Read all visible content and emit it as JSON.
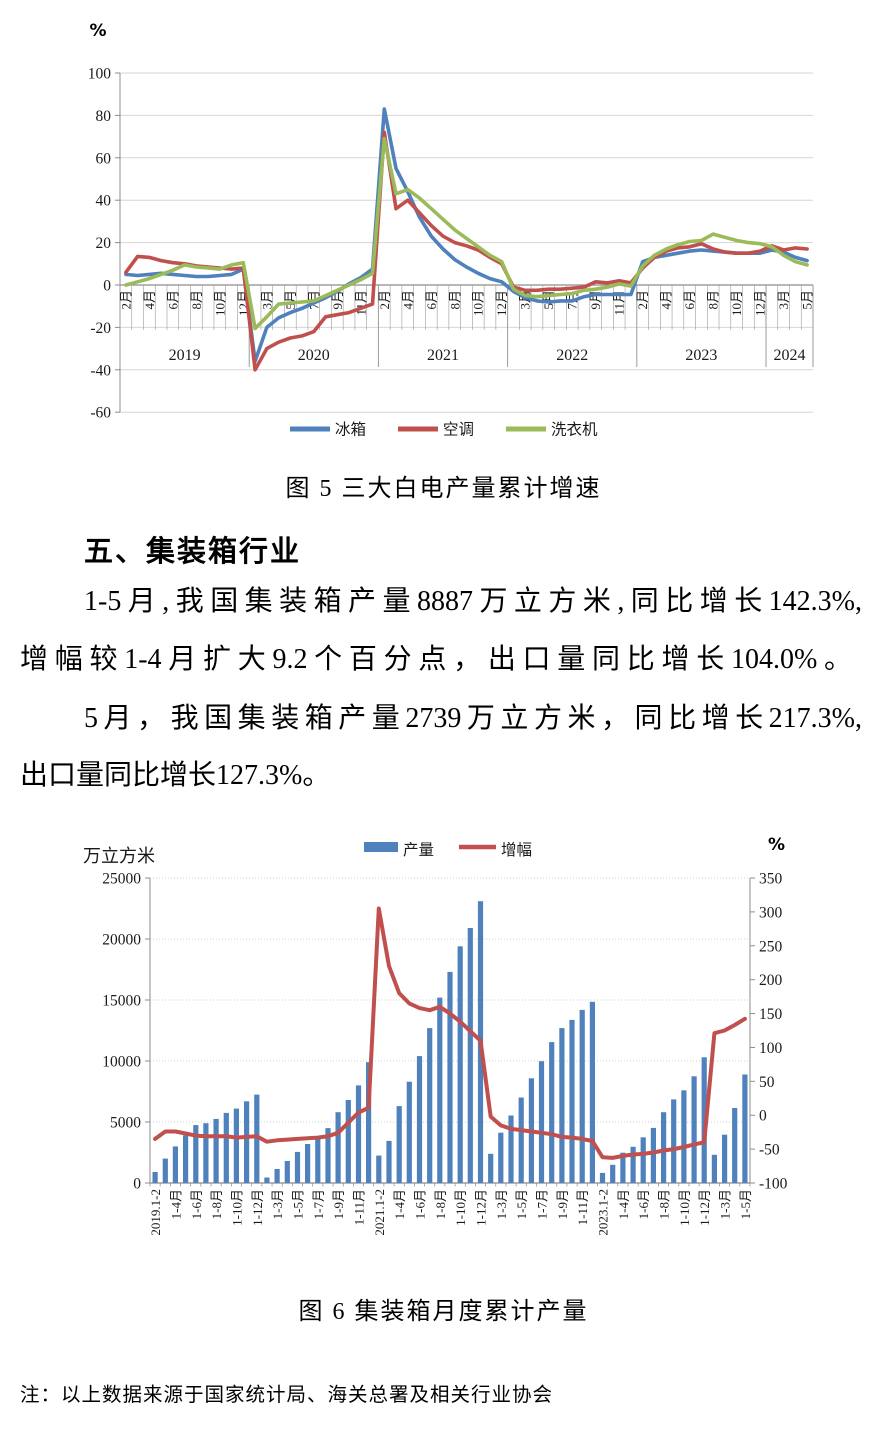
{
  "chart_data": [
    {
      "type": "line",
      "title": "图 5 三大白电产量累计增速",
      "ylabel": "%",
      "ylim": [
        -60,
        100
      ],
      "yticks": [
        100,
        80,
        60,
        40,
        20,
        0,
        -20,
        -40,
        -60
      ],
      "grid": "horizontal",
      "legend_position": "bottom",
      "x_tick_labels": [
        "2月",
        "4月",
        "6月",
        "8月",
        "10月",
        "12月",
        "3月",
        "5月",
        "7月",
        "9月",
        "11月",
        "2月",
        "4月",
        "6月",
        "8月",
        "10月",
        "12月",
        "3月",
        "5月",
        "7月",
        "9月",
        "11月",
        "2月",
        "4月",
        "6月",
        "8月",
        "10月",
        "12月",
        "3月",
        "5月"
      ],
      "x_year_labels": [
        "2019",
        "2020",
        "2021",
        "2022",
        "2023",
        "2024"
      ],
      "points_per_year": [
        11,
        11,
        11,
        11,
        11,
        4
      ],
      "series": [
        {
          "name": "冰箱",
          "color": "#4f81bd",
          "values": [
            5,
            4.5,
            5,
            5.5,
            5,
            4.5,
            4,
            4,
            4.5,
            5,
            7.5,
            -36,
            -20,
            -15.5,
            -13,
            -11,
            -8.5,
            -6,
            -3,
            0.5,
            3.5,
            7.5,
            83,
            55,
            44,
            32,
            23,
            17,
            12,
            8.5,
            5.5,
            3,
            1.5,
            -3,
            -6,
            -7.5,
            -8,
            -7.5,
            -7.5,
            -5.5,
            -4.5,
            -4.5,
            -4.5,
            -4.5,
            11,
            13,
            14,
            15,
            16,
            16.5,
            16,
            15.5,
            15,
            15,
            15,
            16.5,
            15.5,
            13,
            11.5
          ]
        },
        {
          "name": "空调",
          "color": "#c0504d",
          "values": [
            6,
            13.5,
            13,
            11.5,
            10.5,
            10,
            9,
            8.5,
            8,
            7.5,
            8,
            -40,
            -30,
            -27,
            -25,
            -24,
            -22,
            -15,
            -14,
            -13,
            -11,
            -9,
            72,
            36,
            40,
            34,
            28,
            23,
            20,
            18.5,
            16.5,
            13,
            10,
            -1,
            -2.5,
            -2.5,
            -2,
            -2,
            -1.5,
            -1,
            1.5,
            1,
            2,
            1,
            8,
            13,
            16,
            17.5,
            18,
            19.5,
            17,
            15.5,
            15,
            15,
            16,
            18.5,
            16.5,
            17.5,
            17
          ]
        },
        {
          "name": "洗衣机",
          "color": "#9bbb59",
          "values": [
            0,
            1.5,
            3,
            5,
            7,
            9.5,
            8.5,
            8,
            7.5,
            9.5,
            10.5,
            -20.5,
            -15,
            -9,
            -8.5,
            -8,
            -7.5,
            -5,
            -2.5,
            0,
            2.5,
            5.5,
            69,
            43,
            45,
            41,
            36,
            31,
            26,
            22,
            18,
            14,
            11,
            -2,
            -5,
            -5.5,
            -5,
            -4.5,
            -4,
            -2.5,
            -2,
            -1,
            0.5,
            -0.5,
            9,
            14,
            17,
            19,
            20.5,
            21,
            24,
            22.5,
            21,
            20,
            19.5,
            18,
            14,
            11,
            9.5
          ]
        }
      ]
    },
    {
      "type": "bar",
      "title": "图 6 集装箱月度累计产量",
      "left_axis_label": "万立方米",
      "right_axis_label": "%",
      "left_ylim": [
        0,
        25000
      ],
      "right_ylim": [
        -100,
        350
      ],
      "left_yticks": [
        25000,
        20000,
        15000,
        10000,
        5000,
        0
      ],
      "right_yticks": [
        350,
        300,
        250,
        200,
        150,
        100,
        50,
        0,
        -50,
        -100
      ],
      "grid": "horizontal-dotted",
      "legend_position": "top",
      "x_tick_labels": [
        "2019.1-2",
        "1-4月",
        "1-6月",
        "1-8月",
        "1-10月",
        "1-12月",
        "1-3月",
        "1-5月",
        "1-7月",
        "1-9月",
        "1-11月",
        "2021.1-2",
        "1-4月",
        "1-6月",
        "1-8月",
        "1-10月",
        "1-12月",
        "1-3月",
        "1-5月",
        "1-7月",
        "1-9月",
        "1-11月",
        "2023.1-2",
        "1-4月",
        "1-6月",
        "1-8月",
        "1-10月",
        "1-12月",
        "1-3月",
        "1-5月"
      ],
      "points_per_year": [
        11,
        11,
        11,
        11,
        11,
        4
      ],
      "series": [
        {
          "name": "产量",
          "chart_type": "bar",
          "axis": "left",
          "color": "#4f81bd",
          "values": [
            900,
            2000,
            3000,
            3900,
            4750,
            4900,
            5250,
            5750,
            6100,
            6700,
            7250,
            450,
            1150,
            1800,
            2550,
            3200,
            3750,
            4500,
            5800,
            6800,
            8000,
            9900,
            2250,
            3450,
            6300,
            8300,
            10400,
            12700,
            15200,
            17300,
            19400,
            20900,
            23100,
            2390,
            4125,
            5530,
            7010,
            8580,
            9980,
            11550,
            12700,
            13370,
            14190,
            14850,
            830,
            1490,
            2480,
            2970,
            3750,
            4520,
            5800,
            6850,
            7600,
            8750,
            10300,
            2310,
            3960,
            6150,
            8890
          ]
        },
        {
          "name": "增幅",
          "chart_type": "line",
          "axis": "right",
          "color": "#c0504d",
          "values": [
            -35,
            -24,
            -24,
            -27,
            -30,
            -31,
            -31,
            -31,
            -33,
            -32,
            -31,
            -39,
            -37,
            -36,
            -35,
            -34,
            -33,
            -31,
            -26,
            -11,
            4,
            11,
            305,
            220,
            180,
            165,
            158,
            155,
            160,
            150,
            138,
            124,
            110,
            -2,
            -15,
            -20,
            -22,
            -24,
            -26,
            -28,
            -32,
            -33,
            -35,
            -38,
            -62,
            -63,
            -60,
            -58,
            -57,
            -55,
            -52,
            -50,
            -47,
            -43,
            -40,
            121,
            125,
            133.1,
            142.3
          ]
        }
      ]
    }
  ],
  "section": {
    "heading": "五、集装箱行业",
    "p1l1": "1-5月,我国集装箱产量8887万立方米,同比增长142.3%,",
    "p1l2": "增幅较1-4月扩大9.2个百分点，出口量同比增长104.0%。",
    "p2l1": "5月，我国集装箱产量2739万立方米，同比增长217.3%,",
    "p2l2": "出口量同比增长127.3%。"
  },
  "note": "注：以上数据来源于国家统计局、海关总署及相关行业协会"
}
